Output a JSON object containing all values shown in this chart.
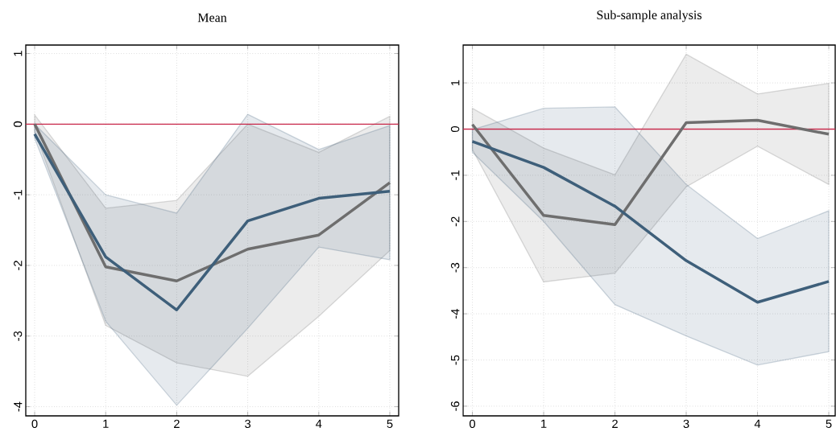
{
  "chart_data": [
    {
      "type": "line",
      "title": "Mean",
      "x": [
        0,
        1,
        2,
        3,
        4,
        5
      ],
      "xlim": [
        -0.125,
        5.125
      ],
      "ylim": [
        -4.13,
        1.12
      ],
      "xticks": [
        0,
        1,
        2,
        3,
        4,
        5
      ],
      "yticks": [
        -4,
        -3,
        -2,
        -1,
        0,
        1
      ],
      "grid": true,
      "line_style": "solid",
      "tick_labels": true,
      "ref_lines": [
        {
          "axis": "y",
          "value": 0,
          "color": "#c8284a"
        }
      ],
      "series": [
        {
          "color": "#6e6e6e",
          "values": [
            0,
            -2.02,
            -2.22,
            -1.77,
            -1.57,
            -0.83
          ],
          "lower": [
            -0.1,
            -2.85,
            -3.38,
            -3.57,
            -2.72,
            -1.79
          ],
          "upper": [
            0.13,
            -1.19,
            -1.08,
            0.0,
            -0.4,
            0.11
          ]
        },
        {
          "color": "#3e5f7a",
          "values": [
            -0.14,
            -1.88,
            -2.63,
            -1.37,
            -1.05,
            -0.95
          ],
          "lower": [
            -0.2,
            -2.79,
            -3.98,
            -2.89,
            -1.74,
            -1.92
          ],
          "upper": [
            0.0,
            -1.0,
            -1.26,
            0.14,
            -0.36,
            -0.02
          ]
        }
      ]
    },
    {
      "type": "line",
      "title": "Sub-sample analysis",
      "x": [
        0,
        1,
        2,
        3,
        4,
        5
      ],
      "xlim": [
        -0.13,
        5.09
      ],
      "ylim": [
        -6.21,
        1.82
      ],
      "xticks": [
        0,
        1,
        2,
        3,
        4,
        5
      ],
      "yticks": [
        -6,
        -5,
        -4,
        -3,
        -2,
        -1,
        0,
        1
      ],
      "grid": true,
      "line_style": "solid",
      "tick_labels": true,
      "ref_lines": [
        {
          "axis": "y",
          "value": 0,
          "color": "#c8284a"
        }
      ],
      "series": [
        {
          "color": "#6e6e6e",
          "values": [
            0.1,
            -1.87,
            -2.07,
            0.14,
            0.19,
            -0.11
          ],
          "lower": [
            -0.44,
            -3.31,
            -3.12,
            -1.25,
            -0.37,
            -1.2
          ],
          "upper": [
            0.45,
            -0.41,
            -0.99,
            1.62,
            0.76,
            0.99
          ]
        },
        {
          "color": "#3e5f7a",
          "values": [
            -0.27,
            -0.83,
            -1.67,
            -2.85,
            -3.75,
            -3.3
          ],
          "lower": [
            -0.5,
            -2.0,
            -3.8,
            -4.48,
            -5.11,
            -4.82
          ],
          "upper": [
            -0.01,
            0.45,
            0.48,
            -1.2,
            -2.37,
            -1.77
          ]
        }
      ]
    }
  ]
}
